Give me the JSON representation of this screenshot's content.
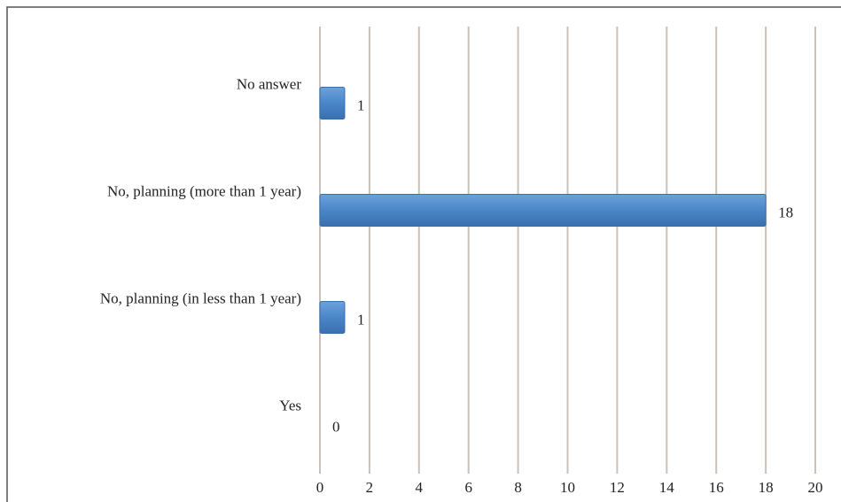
{
  "chart_data": {
    "type": "bar",
    "orientation": "horizontal",
    "categories": [
      "No answer",
      "No, planning (more than 1 year)",
      "No, planning (in less than 1 year)",
      "Yes"
    ],
    "values": [
      1,
      18,
      1,
      0
    ],
    "color": "#4a86c8",
    "xlim": [
      0,
      20
    ],
    "xticks": [
      0,
      2,
      4,
      6,
      8,
      10,
      12,
      14,
      16,
      18,
      20
    ],
    "grid": true
  }
}
